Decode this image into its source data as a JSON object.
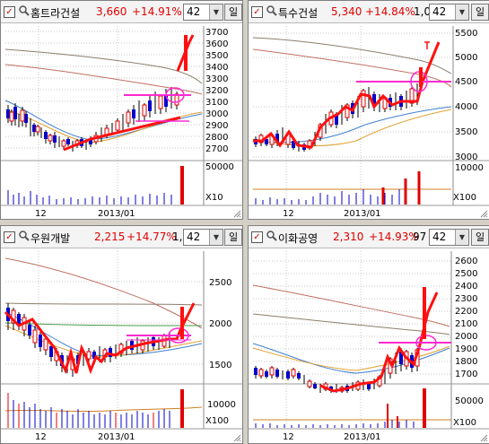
{
  "panels": [
    {
      "name": "홈트라건설",
      "price": "3,660",
      "change": "+14.91%",
      "extra": "",
      "period": "42",
      "period_button": "일",
      "axis_ticks": [
        "3700",
        "3600",
        "3500",
        "3400",
        "3300",
        "3200",
        "3100",
        "3000",
        "2900",
        "2800",
        "2700"
      ],
      "volume_ticks": [
        "50000"
      ],
      "volume_unit": "X10",
      "x_labels": [
        "12",
        "2013/01"
      ]
    },
    {
      "name": "특수건설",
      "price": "5,340",
      "change": "+14.84%",
      "extra": "1,0",
      "period": "42",
      "period_button": "일",
      "axis_ticks": [
        "5500",
        "5000",
        "4500",
        "4000",
        "3500",
        "3000"
      ],
      "volume_ticks": [
        "10000"
      ],
      "volume_unit": "X100",
      "x_labels": [
        "12",
        "2013/01"
      ]
    },
    {
      "name": "우원개발",
      "price": "2,215",
      "change": "+14.77%",
      "extra": "1,4",
      "period": "42",
      "period_button": "일",
      "axis_ticks": [
        "2500",
        "2000",
        "1500"
      ],
      "volume_ticks": [
        "10000"
      ],
      "volume_unit": "X100",
      "x_labels": [
        "12",
        "2013/01"
      ]
    },
    {
      "name": "이화공영",
      "price": "2,310",
      "change": "+14.93%",
      "extra": "97",
      "period": "42",
      "period_button": "일",
      "axis_ticks": [
        "2600",
        "2500",
        "2400",
        "2300",
        "2200",
        "2100",
        "2000",
        "1900",
        "1800",
        "1700"
      ],
      "volume_ticks": [
        "50000"
      ],
      "volume_unit": "X100",
      "x_labels": [
        "12",
        "2013/01"
      ]
    }
  ],
  "icons": {
    "checkbox": "checkbox-icon",
    "search": "magnifier-icon",
    "dropdown": "chevron-down-icon",
    "resize": "resize-grip-icon"
  },
  "colors": {
    "up": "#e00000",
    "down": "#0000cc",
    "annotation": "#ff1010",
    "highlight": "#ff2ad0"
  }
}
